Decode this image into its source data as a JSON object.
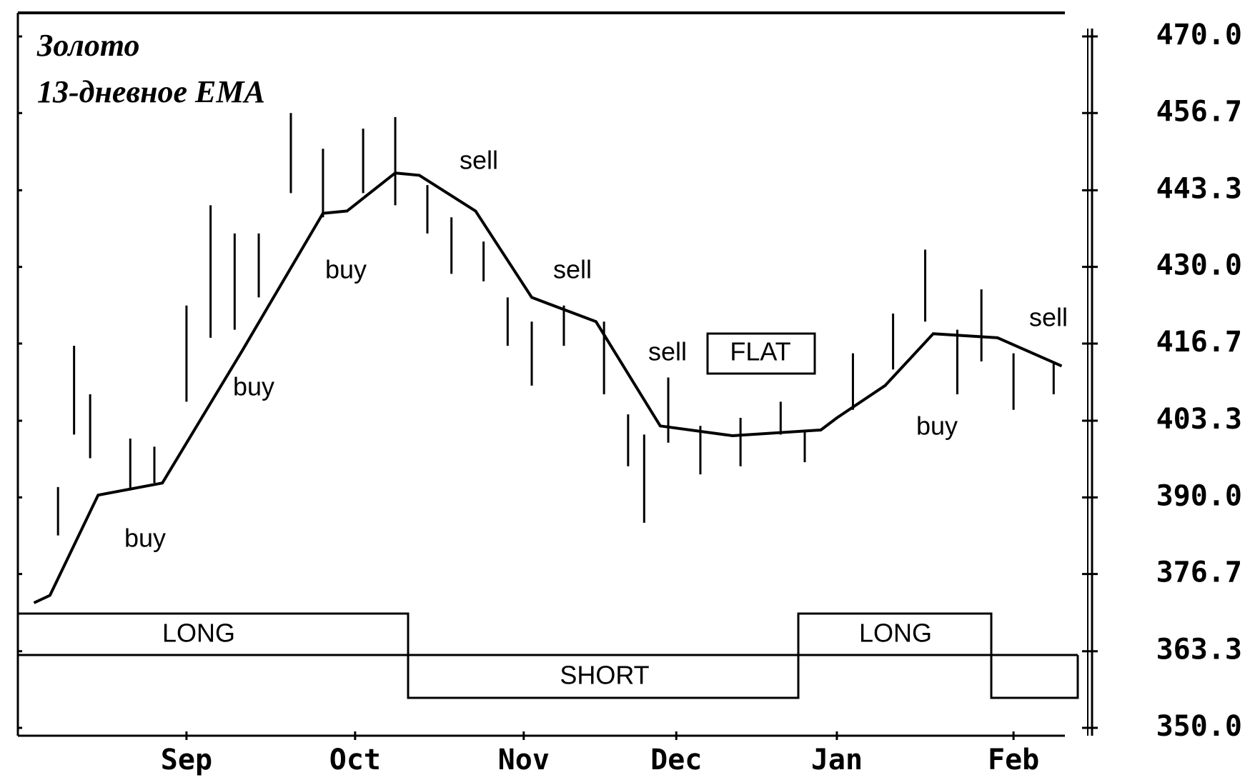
{
  "chart_data": {
    "type": "line",
    "title": "Золото",
    "subtitle": "13-дневное EMA",
    "xlim": [
      0,
      132
    ],
    "xticks": [
      {
        "value": 21,
        "label": "Sep"
      },
      {
        "value": 42,
        "label": "Oct"
      },
      {
        "value": 63,
        "label": "Nov"
      },
      {
        "value": 82,
        "label": "Dec"
      },
      {
        "value": 102,
        "label": "Jan"
      },
      {
        "value": 124,
        "label": "Feb"
      }
    ],
    "ylim": [
      350,
      470
    ],
    "yticks": [
      {
        "value": 470,
        "label": "470.0"
      },
      456.7,
      443.3,
      {
        "value": 430,
        "label": "430.0"
      },
      416.7,
      403.3,
      {
        "value": 390,
        "label": "390.0"
      },
      376.7,
      363.3,
      {
        "value": 350,
        "label": "350.0"
      }
    ],
    "ema": {
      "color": "#000000",
      "x": [
        2,
        4,
        10,
        18,
        28,
        38,
        41,
        47,
        50,
        57,
        64,
        72,
        80,
        89,
        100,
        102,
        108,
        114,
        122,
        130
      ],
      "values": [
        371.7,
        373,
        390.4,
        392.5,
        415.6,
        439.3,
        439.7,
        446.3,
        445.9,
        439.7,
        424.7,
        420.5,
        402.4,
        400.7,
        401.7,
        403.8,
        409.4,
        418.4,
        417.7,
        412.8
      ]
    },
    "bars": {
      "color": "#000000",
      "x": [
        5,
        7,
        9,
        14,
        17,
        21,
        24,
        27,
        30,
        34,
        38,
        43,
        47,
        51,
        54,
        58,
        61,
        64,
        68,
        73,
        76,
        78,
        81,
        85,
        90,
        95,
        98,
        104,
        109,
        113,
        117,
        120,
        124,
        129
      ],
      "low": [
        383.4,
        400.9,
        396.8,
        391.2,
        392.5,
        406.6,
        417.7,
        419.1,
        424.7,
        442.8,
        438.6,
        442.8,
        440.7,
        435.8,
        428.8,
        427.5,
        416.3,
        409.4,
        416.3,
        407.9,
        395.4,
        385.6,
        399.5,
        394,
        395.4,
        400.9,
        396.1,
        405.2,
        412.2,
        420.5,
        407.9,
        413.6,
        405.2,
        407.9
      ],
      "high": [
        391.8,
        416.3,
        407.9,
        400.2,
        398.8,
        423.3,
        440.7,
        435.8,
        435.8,
        456.7,
        450.5,
        454,
        456,
        444.2,
        438.6,
        434.4,
        424.7,
        420.5,
        423.3,
        420.5,
        404.4,
        400.9,
        410.8,
        402.4,
        403.8,
        406.6,
        401.7,
        415,
        421.9,
        433,
        419.1,
        426.1,
        415,
        413.6
      ]
    },
    "annotations": [
      "buy",
      "buy",
      "buy",
      "sell",
      "sell",
      "sell",
      "FLAT",
      "buy",
      "sell"
    ],
    "positions": [
      "LONG",
      "SHORT",
      "LONG"
    ]
  }
}
